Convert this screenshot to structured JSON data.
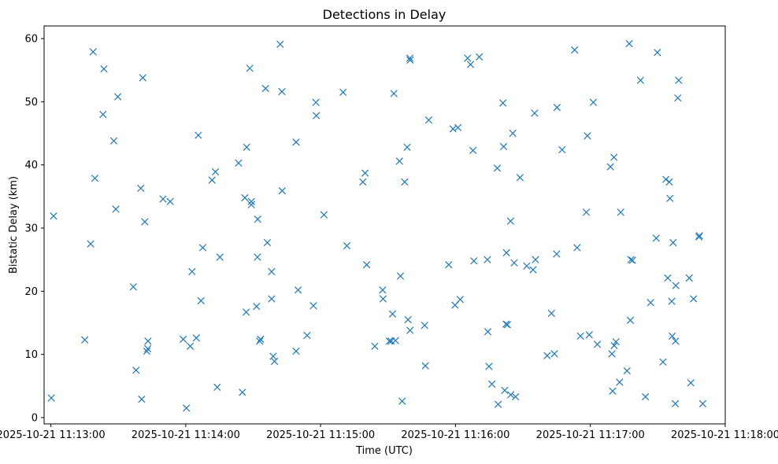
{
  "chart_data": {
    "type": "scatter",
    "title": "Detections in Delay",
    "xlabel": "Time (UTC)",
    "ylabel": "Bistatic Delay (km)",
    "marker": "x",
    "color": "#1f77b4",
    "grid": false,
    "x_unit": "seconds after 2025-10-21 11:13:00",
    "xlim": [
      -3,
      300
    ],
    "ylim": [
      -1,
      62
    ],
    "x_ticks": [
      {
        "value": 0,
        "label": "2025-10-21 11:13:00"
      },
      {
        "value": 60,
        "label": "2025-10-21 11:14:00"
      },
      {
        "value": 120,
        "label": "2025-10-21 11:15:00"
      },
      {
        "value": 180,
        "label": "2025-10-21 11:16:00"
      },
      {
        "value": 240,
        "label": "2025-10-21 11:17:00"
      },
      {
        "value": 300,
        "label": "2025-10-21 11:18:00"
      }
    ],
    "y_ticks": [
      0,
      10,
      20,
      30,
      40,
      50,
      60
    ],
    "points": [
      [
        0.2,
        3.1
      ],
      [
        1.2,
        31.9
      ],
      [
        15.1,
        12.3
      ],
      [
        17.7,
        27.5
      ],
      [
        18.8,
        57.9
      ],
      [
        19.6,
        37.9
      ],
      [
        23.2,
        48.0
      ],
      [
        23.6,
        55.2
      ],
      [
        28.0,
        43.8
      ],
      [
        28.9,
        33.0
      ],
      [
        29.8,
        50.8
      ],
      [
        36.7,
        20.7
      ],
      [
        37.9,
        7.5
      ],
      [
        40.0,
        36.3
      ],
      [
        40.4,
        2.9
      ],
      [
        40.9,
        53.8
      ],
      [
        41.8,
        31.0
      ],
      [
        42.7,
        10.5
      ],
      [
        43.2,
        12.1
      ],
      [
        43.1,
        10.9
      ],
      [
        49.9,
        34.6
      ],
      [
        53.1,
        34.2
      ],
      [
        58.9,
        12.4
      ],
      [
        60.3,
        1.5
      ],
      [
        62.0,
        11.3
      ],
      [
        62.8,
        23.1
      ],
      [
        64.7,
        12.6
      ],
      [
        65.6,
        44.7
      ],
      [
        66.8,
        18.5
      ],
      [
        67.6,
        26.9
      ],
      [
        71.7,
        37.6
      ],
      [
        73.2,
        38.9
      ],
      [
        74.0,
        4.8
      ],
      [
        75.2,
        25.4
      ],
      [
        83.5,
        40.3
      ],
      [
        85.2,
        4.0
      ],
      [
        86.3,
        34.8
      ],
      [
        86.9,
        16.7
      ],
      [
        87.1,
        42.8
      ],
      [
        88.5,
        55.3
      ],
      [
        89.2,
        33.7
      ],
      [
        89.2,
        34.2
      ],
      [
        91.5,
        17.6
      ],
      [
        91.9,
        25.4
      ],
      [
        92.0,
        31.4
      ],
      [
        92.9,
        12.1
      ],
      [
        93.3,
        12.4
      ],
      [
        95.5,
        52.1
      ],
      [
        96.3,
        27.7
      ],
      [
        98.2,
        18.8
      ],
      [
        98.2,
        23.1
      ],
      [
        98.9,
        9.7
      ],
      [
        99.5,
        8.9
      ],
      [
        102.0,
        59.1
      ],
      [
        102.8,
        51.6
      ],
      [
        102.9,
        35.9
      ],
      [
        109.1,
        43.6
      ],
      [
        109.1,
        10.5
      ],
      [
        110.0,
        20.2
      ],
      [
        114.0,
        13.0
      ],
      [
        116.8,
        17.7
      ],
      [
        117.9,
        49.9
      ],
      [
        118.1,
        47.8
      ],
      [
        121.5,
        32.1
      ],
      [
        130.0,
        51.5
      ],
      [
        131.7,
        27.2
      ],
      [
        138.8,
        37.3
      ],
      [
        139.8,
        38.7
      ],
      [
        140.5,
        24.2
      ],
      [
        144.1,
        11.3
      ],
      [
        147.6,
        20.2
      ],
      [
        147.8,
        18.8
      ],
      [
        150.6,
        12.1
      ],
      [
        151.4,
        12.1
      ],
      [
        152.0,
        16.4
      ],
      [
        152.6,
        51.3
      ],
      [
        153.3,
        12.2
      ],
      [
        155.1,
        40.6
      ],
      [
        155.5,
        22.4
      ],
      [
        156.3,
        2.6
      ],
      [
        157.4,
        37.3
      ],
      [
        158.5,
        42.8
      ],
      [
        158.9,
        15.5
      ],
      [
        159.7,
        56.9
      ],
      [
        159.8,
        13.8
      ],
      [
        159.8,
        56.6
      ],
      [
        166.3,
        14.6
      ],
      [
        168.1,
        47.1
      ],
      [
        166.6,
        8.2
      ],
      [
        177.0,
        24.2
      ],
      [
        178.9,
        45.7
      ],
      [
        179.8,
        17.8
      ],
      [
        181.1,
        45.9
      ],
      [
        182.1,
        18.7
      ],
      [
        185.4,
        56.9
      ],
      [
        186.7,
        55.9
      ],
      [
        187.8,
        42.3
      ],
      [
        188.2,
        24.8
      ],
      [
        190.6,
        57.1
      ],
      [
        194.2,
        25.0
      ],
      [
        194.4,
        13.6
      ],
      [
        194.9,
        8.1
      ],
      [
        196.2,
        5.3
      ],
      [
        198.6,
        39.5
      ],
      [
        199.0,
        2.1
      ],
      [
        201.1,
        49.8
      ],
      [
        201.4,
        42.9
      ],
      [
        201.9,
        4.3
      ],
      [
        202.5,
        14.8
      ],
      [
        202.7,
        26.1
      ],
      [
        203.1,
        14.7
      ],
      [
        204.5,
        31.1
      ],
      [
        204.6,
        3.6
      ],
      [
        205.5,
        45.0
      ],
      [
        206.1,
        24.5
      ],
      [
        206.7,
        3.3
      ],
      [
        208.7,
        38.0
      ],
      [
        211.7,
        24.0
      ],
      [
        215.2,
        48.2
      ],
      [
        215.6,
        25.0
      ],
      [
        214.5,
        23.4
      ],
      [
        220.8,
        9.8
      ],
      [
        222.7,
        16.5
      ],
      [
        224.0,
        10.1
      ],
      [
        225.2,
        49.1
      ],
      [
        225.0,
        25.9
      ],
      [
        227.4,
        42.4
      ],
      [
        233.0,
        58.2
      ],
      [
        234.1,
        26.9
      ],
      [
        235.6,
        12.9
      ],
      [
        238.2,
        32.5
      ],
      [
        238.7,
        44.6
      ],
      [
        239.5,
        13.1
      ],
      [
        241.3,
        49.9
      ],
      [
        243.1,
        11.6
      ],
      [
        248.9,
        39.7
      ],
      [
        249.6,
        10.1
      ],
      [
        249.9,
        4.2
      ],
      [
        250.5,
        41.2
      ],
      [
        250.6,
        11.4
      ],
      [
        251.4,
        12.0
      ],
      [
        253.0,
        5.6
      ],
      [
        253.5,
        32.5
      ],
      [
        256.3,
        7.4
      ],
      [
        257.3,
        59.2
      ],
      [
        257.8,
        15.4
      ],
      [
        258.0,
        25.0
      ],
      [
        258.7,
        24.9
      ],
      [
        262.3,
        53.4
      ],
      [
        264.5,
        3.3
      ],
      [
        266.8,
        18.2
      ],
      [
        269.3,
        28.4
      ],
      [
        269.8,
        57.8
      ],
      [
        272.3,
        8.8
      ],
      [
        273.6,
        37.7
      ],
      [
        274.4,
        22.1
      ],
      [
        275.1,
        37.3
      ],
      [
        275.4,
        34.7
      ],
      [
        276.2,
        18.4
      ],
      [
        276.4,
        12.9
      ],
      [
        276.8,
        27.7
      ],
      [
        277.8,
        2.2
      ],
      [
        277.9,
        12.1
      ],
      [
        278.0,
        20.9
      ],
      [
        278.9,
        50.6
      ],
      [
        279.3,
        53.4
      ],
      [
        284.0,
        22.1
      ],
      [
        284.7,
        5.5
      ],
      [
        285.9,
        18.8
      ],
      [
        288.3,
        28.6
      ],
      [
        288.5,
        28.8
      ],
      [
        290.0,
        2.2
      ]
    ]
  }
}
